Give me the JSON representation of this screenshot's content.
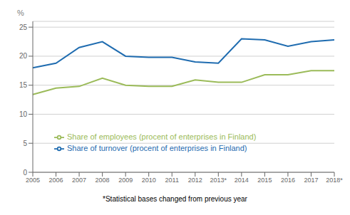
{
  "chart_data": {
    "type": "line",
    "ylabel": "%",
    "annotations": [
      "*Statistical bases changed from previous year"
    ],
    "categories": [
      "2005",
      "2006",
      "2007",
      "2008",
      "2009",
      "2010",
      "2011",
      "2012",
      "2013*",
      "2014",
      "2015",
      "2016",
      "2017",
      "2018*"
    ],
    "series": [
      {
        "name": "Share of turnover (procent of enterprises in Finland)",
        "color": "#1F6CB0",
        "values": [
          18.0,
          18.8,
          21.5,
          22.5,
          20.0,
          19.8,
          19.8,
          19.0,
          18.8,
          23.0,
          22.8,
          21.7,
          22.5,
          22.8
        ]
      },
      {
        "name": "Share of employees (procent of enterprises in Finland)",
        "color": "#9BBB59",
        "values": [
          13.4,
          14.5,
          14.8,
          16.2,
          15.0,
          14.8,
          14.8,
          15.9,
          15.5,
          15.5,
          16.8,
          16.8,
          17.5,
          17.5
        ]
      }
    ],
    "ylim": [
      0,
      26
    ],
    "yticks": [
      0,
      5,
      10,
      15,
      20,
      25
    ],
    "grid": true,
    "legend": "lower left"
  }
}
